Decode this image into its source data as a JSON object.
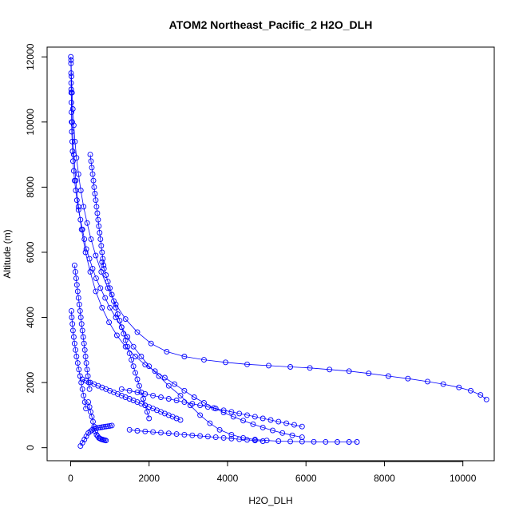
{
  "chart_data": {
    "type": "scatter",
    "title": "ATOM2 Northeast_Pacific_2 H2O_DLH",
    "xlabel": "H2O_DLH",
    "ylabel": "Altitude (m)",
    "xlim": [
      -600,
      10800
    ],
    "ylim": [
      -400,
      12300
    ],
    "x_ticks": [
      0,
      2000,
      4000,
      6000,
      8000,
      10000
    ],
    "y_ticks": [
      0,
      2000,
      4000,
      6000,
      8000,
      10000,
      12000
    ],
    "x_tick_labels": [
      "0",
      "2000",
      "4000",
      "6000",
      "8000",
      "10000"
    ],
    "y_tick_labels": [
      "0",
      "2000",
      "4000",
      "6000",
      "8000",
      "10000",
      "12000"
    ],
    "grid": false,
    "legend": "none",
    "colors": {
      "points": "#0000ff",
      "axes": "#000000"
    },
    "marker": "open-circle",
    "connected": true,
    "series": [
      {
        "x": [
          5,
          8,
          10,
          12,
          15,
          18,
          20,
          25,
          30,
          40,
          50,
          60,
          80,
          100,
          130,
          160,
          200,
          250,
          300,
          350,
          400,
          480,
          560,
          650,
          760,
          880,
          1000,
          1150,
          1300,
          1450,
          1600,
          1800,
          2000,
          2250,
          2500,
          2800,
          3050,
          3300,
          3550,
          3800,
          4100,
          4400,
          4700,
          5000,
          5300,
          5600,
          5900,
          6200,
          6500,
          6800,
          7100,
          7300
        ],
        "y": [
          12000,
          11800,
          11500,
          11200,
          10900,
          10600,
          10300,
          10000,
          9700,
          9400,
          9100,
          8800,
          8500,
          8200,
          7900,
          7600,
          7300,
          7000,
          6700,
          6400,
          6100,
          5800,
          5500,
          5200,
          4900,
          4600,
          4300,
          4000,
          3700,
          3400,
          3100,
          2800,
          2500,
          2200,
          1900,
          1600,
          1300,
          1000,
          750,
          550,
          400,
          300,
          250,
          220,
          200,
          190,
          185,
          180,
          178,
          176,
          175,
          175
        ]
      },
      {
        "x": [
          10,
          20,
          35,
          55,
          80,
          110,
          150,
          200,
          260,
          330,
          420,
          520,
          640,
          780,
          950,
          1150,
          1400,
          1700,
          2050,
          2450,
          2900,
          3400,
          3950,
          4500,
          5050,
          5600,
          6100,
          6600,
          7100,
          7600,
          8100,
          8600,
          9100,
          9500,
          9900,
          10200,
          10450,
          10600
        ],
        "y": [
          11900,
          11400,
          10900,
          10400,
          9900,
          9400,
          8900,
          8400,
          7900,
          7400,
          6900,
          6400,
          5900,
          5400,
          4900,
          4400,
          3950,
          3550,
          3200,
          2950,
          2800,
          2700,
          2620,
          2560,
          2520,
          2480,
          2450,
          2400,
          2350,
          2280,
          2200,
          2120,
          2030,
          1950,
          1850,
          1750,
          1620,
          1480
        ]
      },
      {
        "x": [
          15,
          40,
          80,
          130,
          200,
          280,
          380,
          500,
          640,
          800,
          980,
          1180,
          1400,
          1650,
          1900,
          2150,
          2400,
          2650,
          2900,
          3150,
          3400,
          3650,
          3900,
          4150,
          4400,
          4650,
          4900,
          5150,
          5400,
          5650,
          5900
        ],
        "y": [
          11000,
          10000,
          9000,
          8200,
          7400,
          6700,
          6000,
          5400,
          4800,
          4300,
          3850,
          3450,
          3100,
          2800,
          2550,
          2350,
          2150,
          1950,
          1750,
          1550,
          1380,
          1220,
          1080,
          950,
          830,
          720,
          620,
          530,
          450,
          380,
          320
        ]
      },
      {
        "x": [
          100,
          120,
          140,
          160,
          180,
          200,
          220,
          240,
          260,
          280,
          300,
          320,
          340,
          360,
          380,
          400,
          420,
          440,
          460,
          480
        ],
        "y": [
          5600,
          5400,
          5200,
          5000,
          4800,
          4600,
          4400,
          4200,
          4000,
          3800,
          3600,
          3400,
          3200,
          3000,
          2800,
          2600,
          2400,
          2200,
          2000,
          1800
        ]
      },
      {
        "x": [
          500,
          520,
          540,
          560,
          580,
          600,
          620,
          640,
          660,
          680,
          700,
          720,
          740,
          760,
          780,
          800,
          820,
          840
        ],
        "y": [
          9000,
          8800,
          8600,
          8400,
          8200,
          8000,
          7800,
          7600,
          7400,
          7200,
          7000,
          6800,
          6600,
          6400,
          6200,
          6000,
          5800,
          5600
        ]
      },
      {
        "x": [
          800,
          850,
          900,
          950,
          1000,
          1050,
          1100,
          1150,
          1200,
          1250,
          1300,
          1350,
          1400,
          1450,
          1500,
          1550,
          1600,
          1650,
          1700,
          1750,
          1800,
          1850,
          1900,
          1950,
          2000
        ],
        "y": [
          5700,
          5500,
          5300,
          5100,
          4900,
          4700,
          4500,
          4300,
          4100,
          3900,
          3700,
          3500,
          3300,
          3100,
          2900,
          2700,
          2500,
          2300,
          2100,
          1900,
          1700,
          1500,
          1300,
          1100,
          900
        ]
      },
      {
        "x": [
          300,
          400,
          500,
          600,
          700,
          800,
          900,
          1000,
          1100,
          1200,
          1300,
          1400,
          1500,
          1600,
          1700,
          1800,
          1900,
          2000,
          2100,
          2200,
          2300,
          2400,
          2500,
          2600,
          2700,
          2800
        ],
        "y": [
          2100,
          2050,
          2000,
          1950,
          1900,
          1850,
          1800,
          1750,
          1700,
          1650,
          1600,
          1550,
          1500,
          1450,
          1400,
          1350,
          1300,
          1250,
          1200,
          1150,
          1100,
          1050,
          1000,
          950,
          900,
          850
        ]
      },
      {
        "x": [
          450,
          480,
          510,
          540,
          570,
          600,
          630,
          660,
          690,
          720,
          750,
          780,
          810,
          840,
          870,
          900
        ],
        "y": [
          1400,
          1250,
          1100,
          950,
          800,
          650,
          500,
          400,
          350,
          300,
          280,
          260,
          250,
          240,
          230,
          220
        ]
      },
      {
        "x": [
          250,
          300,
          350,
          400,
          450,
          500,
          550,
          600,
          650,
          700,
          750,
          800,
          850,
          900,
          950,
          1000,
          1050
        ],
        "y": [
          50,
          150,
          250,
          350,
          450,
          500,
          550,
          580,
          600,
          610,
          620,
          630,
          640,
          650,
          660,
          670,
          680
        ]
      },
      {
        "x": [
          1300,
          1500,
          1700,
          1900,
          2100,
          2300,
          2500,
          2700,
          2900,
          3100,
          3300,
          3500,
          3700,
          3900,
          4100,
          4300,
          4500,
          4700,
          4900,
          5100,
          5300,
          5500,
          5700,
          5900
        ],
        "y": [
          1800,
          1750,
          1700,
          1650,
          1600,
          1550,
          1500,
          1450,
          1400,
          1350,
          1300,
          1250,
          1200,
          1150,
          1100,
          1050,
          1000,
          950,
          900,
          850,
          800,
          750,
          700,
          650
        ]
      },
      {
        "x": [
          20,
          30,
          45,
          60,
          80,
          100,
          125,
          150,
          180,
          210,
          240,
          270,
          300,
          330,
          360,
          390
        ],
        "y": [
          4200,
          4000,
          3800,
          3600,
          3400,
          3200,
          3000,
          2800,
          2600,
          2400,
          2200,
          2000,
          1800,
          1600,
          1400,
          1200
        ]
      },
      {
        "x": [
          1500,
          1700,
          1900,
          2100,
          2300,
          2500,
          2700,
          2900,
          3100,
          3300,
          3500,
          3700,
          3900,
          4100,
          4300,
          4500,
          4700,
          4900
        ],
        "y": [
          550,
          520,
          500,
          480,
          460,
          440,
          420,
          400,
          380,
          360,
          340,
          320,
          300,
          280,
          260,
          240,
          220,
          200
        ]
      }
    ]
  }
}
